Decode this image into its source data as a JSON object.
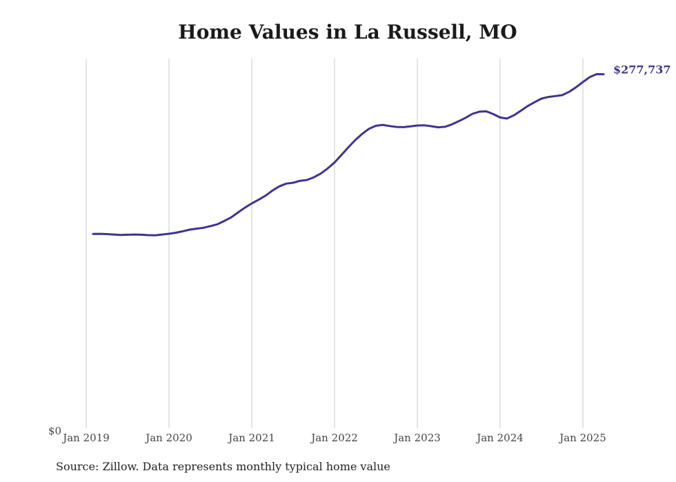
{
  "chart_data": {
    "type": "line",
    "title": "Home Values in La Russell, MO",
    "xlabel": "",
    "ylabel": "",
    "y_tick_labels": [
      "$0"
    ],
    "x_tick_labels": [
      "Jan 2019",
      "Jan 2020",
      "Jan 2021",
      "Jan 2022",
      "Jan 2023",
      "Jan 2024",
      "Jan 2025"
    ],
    "ylim": [
      0,
      290000
    ],
    "grid": "vertical",
    "line_color": "#3d3393",
    "end_label": "$277,737",
    "series": [
      {
        "x": [
          "2019-02",
          "2019-03",
          "2019-04",
          "2019-05",
          "2019-06",
          "2019-07",
          "2019-08",
          "2019-09",
          "2019-10",
          "2019-11",
          "2019-12",
          "2020-01",
          "2020-02",
          "2020-03",
          "2020-04",
          "2020-05",
          "2020-06",
          "2020-07",
          "2020-08",
          "2020-09",
          "2020-10",
          "2020-11",
          "2020-12",
          "2021-01",
          "2021-02",
          "2021-03",
          "2021-04",
          "2021-05",
          "2021-06",
          "2021-07",
          "2021-08",
          "2021-09",
          "2021-10",
          "2021-11",
          "2021-12",
          "2022-01",
          "2022-02",
          "2022-03",
          "2022-04",
          "2022-05",
          "2022-06",
          "2022-07",
          "2022-08",
          "2022-09",
          "2022-10",
          "2022-11",
          "2022-12",
          "2023-01",
          "2023-02",
          "2023-03",
          "2023-04",
          "2023-05",
          "2023-06",
          "2023-07",
          "2023-08",
          "2023-09",
          "2023-10",
          "2023-11",
          "2023-12",
          "2024-01",
          "2024-02",
          "2024-03",
          "2024-04",
          "2024-05",
          "2024-06",
          "2024-07",
          "2024-08",
          "2024-09",
          "2024-10",
          "2024-11",
          "2024-12",
          "2025-01",
          "2025-02",
          "2025-03",
          "2025-04"
        ],
        "values": [
          152400,
          152500,
          152300,
          152000,
          151600,
          151800,
          152000,
          151800,
          151500,
          151400,
          152000,
          152600,
          153400,
          154500,
          155800,
          156600,
          157300,
          158600,
          160000,
          162600,
          165400,
          169300,
          173000,
          176400,
          179300,
          182500,
          186500,
          189800,
          191900,
          192600,
          194100,
          194800,
          196900,
          199800,
          203800,
          208500,
          214400,
          220400,
          226100,
          230900,
          235000,
          237300,
          238000,
          237100,
          236400,
          236200,
          236800,
          237500,
          237700,
          237000,
          236100,
          236500,
          238400,
          240900,
          243600,
          246700,
          248400,
          248600,
          246500,
          243800,
          243000,
          245500,
          249100,
          252800,
          255800,
          258600,
          259900,
          260600,
          261300,
          263900,
          267500,
          271600,
          275500,
          277800,
          277737
        ]
      }
    ]
  },
  "source": "Source: Zillow. Data represents monthly typical home value"
}
